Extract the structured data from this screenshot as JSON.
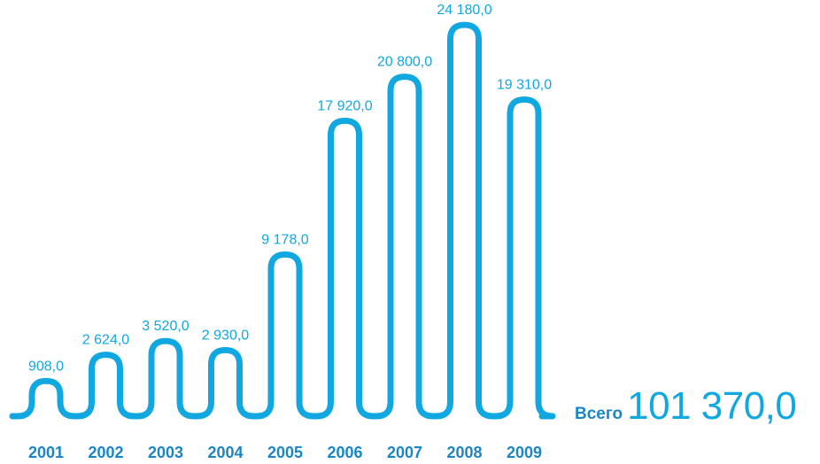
{
  "chart_data": {
    "type": "bar",
    "categories": [
      "2001",
      "2002",
      "2003",
      "2004",
      "2005",
      "2006",
      "2007",
      "2008",
      "2009"
    ],
    "values": [
      908.0,
      2624.0,
      3520.0,
      2930.0,
      9178.0,
      17920.0,
      20800.0,
      24180.0,
      19310.0
    ],
    "value_labels": [
      "908,0",
      "2 624,0",
      "3 520,0",
      "2 930,0",
      "9 178,0",
      "17 920,0",
      "20 800,0",
      "24 180,0",
      "19 310,0"
    ],
    "title": "",
    "xlabel": "",
    "ylabel": "",
    "grid": false,
    "color": "#11a8e2",
    "label_color": "#1c86c4"
  },
  "total": {
    "label": "Всего",
    "value": "101 370,0"
  }
}
